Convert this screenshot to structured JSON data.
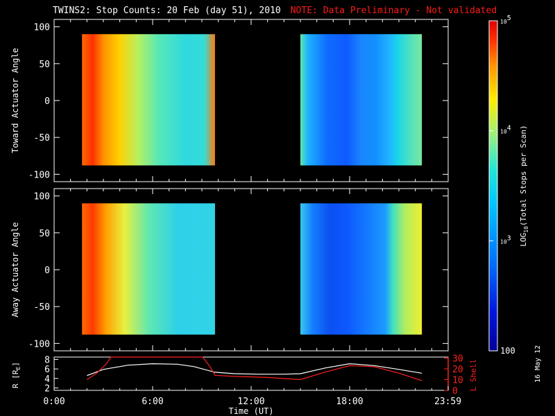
{
  "header": {
    "title": "TWINS2: Stop Counts: 20 Feb (day  51), 2010",
    "note": "NOTE: Data Preliminary - Not validated"
  },
  "side_label": "16 May 12",
  "colors": {
    "background": "#000000",
    "axes": "#ffffff",
    "note": "#ff1a1a",
    "r_line": "#ffffff",
    "lshell_line": "#ff2020"
  },
  "chart_data": [
    {
      "type": "heatmap",
      "panel": "toward",
      "ylabel": "Toward Actuator Angle",
      "ylim": [
        -110,
        110
      ],
      "yticks": [
        100,
        50,
        0,
        -50,
        -100
      ],
      "xlim": [
        0,
        24
      ],
      "coverage_hours": [
        [
          1.7,
          9.8
        ],
        [
          15.0,
          22.4
        ]
      ],
      "angle_range": [
        -88,
        90
      ],
      "value_units": "LOG10(Total Stops per Scan)",
      "scale": "log",
      "zlim": [
        100,
        100000
      ]
    },
    {
      "type": "heatmap",
      "panel": "away",
      "ylabel": "Away Actuator Angle",
      "ylim": [
        -110,
        110
      ],
      "yticks": [
        100,
        50,
        0,
        -50,
        -100
      ],
      "xlim": [
        0,
        24
      ],
      "coverage_hours": [
        [
          1.7,
          9.8
        ],
        [
          15.0,
          22.4
        ]
      ],
      "angle_range": [
        -88,
        90
      ],
      "value_units": "LOG10(Total Stops per Scan)",
      "scale": "log",
      "zlim": [
        100,
        100000
      ]
    },
    {
      "type": "line",
      "panel": "orbit",
      "xlabel": "Time (UT)",
      "xticks": [
        "0:00",
        "6:00",
        "12:00",
        "18:00",
        "23:59"
      ],
      "xtick_hours": [
        0,
        6,
        12,
        18,
        23.98
      ],
      "ylabel_left": "R [R",
      "ylabel_left_sub": "E",
      "ylabel_left_end": "]",
      "ylim_left": [
        1.5,
        8.5
      ],
      "yticks_left": [
        2,
        4,
        6,
        8
      ],
      "ylabel_right": "L Shell",
      "ylim_right": [
        0,
        31
      ],
      "yticks_right": [
        0,
        10,
        20,
        30
      ],
      "series": [
        {
          "axis": "left",
          "color": "#ffffff",
          "x": [
            2.0,
            3.0,
            4.5,
            6.0,
            7.5,
            8.5,
            9.8,
            11.0,
            12.5,
            14.0,
            15.0,
            16.5,
            18.0,
            19.5,
            21.0,
            22.4
          ],
          "y": [
            4.6,
            5.9,
            6.8,
            7.1,
            7.0,
            6.5,
            5.3,
            5.0,
            4.9,
            4.9,
            5.0,
            6.2,
            7.1,
            6.7,
            5.9,
            5.1
          ]
        },
        {
          "axis": "right",
          "color": "#ff2020",
          "x": [
            2.0,
            2.6,
            3.2,
            3.45,
            9.05,
            9.5,
            9.8,
            11.0,
            13.0,
            15.0,
            16.5,
            18.0,
            19.5,
            21.0,
            22.4
          ],
          "y": [
            10,
            16,
            25,
            31,
            31,
            22,
            14,
            13,
            12,
            10,
            17,
            23,
            22,
            16,
            9
          ]
        }
      ]
    },
    {
      "type": "colorbar",
      "label": "LOG",
      "label_sub": "10",
      "label_rest": "(Total Stops per Scan)",
      "ticks": [
        {
          "value": 100000,
          "base": "10",
          "exp": "5"
        },
        {
          "value": 10000,
          "base": "10",
          "exp": "4"
        },
        {
          "value": 1000,
          "base": "10",
          "exp": "3"
        },
        {
          "value": 100,
          "base": "100",
          "exp": ""
        }
      ],
      "zlim": [
        100,
        100000
      ]
    }
  ]
}
